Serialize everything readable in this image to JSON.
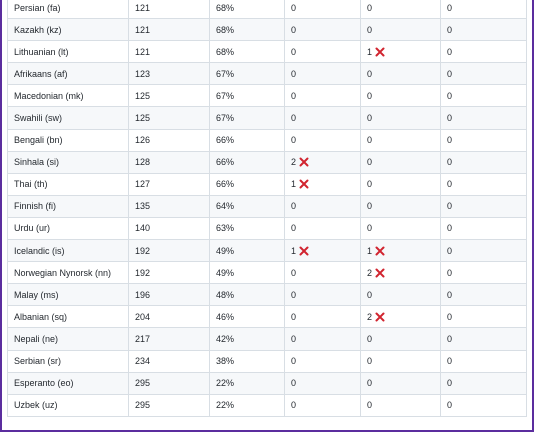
{
  "table": {
    "rows": [
      {
        "language": "Persian (fa)",
        "count": "121",
        "percent": "68%",
        "col4": "0",
        "col4_error": false,
        "col5": "0",
        "col5_error": false,
        "col6": "0"
      },
      {
        "language": "Kazakh (kz)",
        "count": "121",
        "percent": "68%",
        "col4": "0",
        "col4_error": false,
        "col5": "0",
        "col5_error": false,
        "col6": "0"
      },
      {
        "language": "Lithuanian (lt)",
        "count": "121",
        "percent": "68%",
        "col4": "0",
        "col4_error": false,
        "col5": "1",
        "col5_error": true,
        "col6": "0"
      },
      {
        "language": "Afrikaans (af)",
        "count": "123",
        "percent": "67%",
        "col4": "0",
        "col4_error": false,
        "col5": "0",
        "col5_error": false,
        "col6": "0"
      },
      {
        "language": "Macedonian (mk)",
        "count": "125",
        "percent": "67%",
        "col4": "0",
        "col4_error": false,
        "col5": "0",
        "col5_error": false,
        "col6": "0"
      },
      {
        "language": "Swahili (sw)",
        "count": "125",
        "percent": "67%",
        "col4": "0",
        "col4_error": false,
        "col5": "0",
        "col5_error": false,
        "col6": "0"
      },
      {
        "language": "Bengali (bn)",
        "count": "126",
        "percent": "66%",
        "col4": "0",
        "col4_error": false,
        "col5": "0",
        "col5_error": false,
        "col6": "0"
      },
      {
        "language": "Sinhala (si)",
        "count": "128",
        "percent": "66%",
        "col4": "2",
        "col4_error": true,
        "col5": "0",
        "col5_error": false,
        "col6": "0"
      },
      {
        "language": "Thai (th)",
        "count": "127",
        "percent": "66%",
        "col4": "1",
        "col4_error": true,
        "col5": "0",
        "col5_error": false,
        "col6": "0"
      },
      {
        "language": "Finnish (fi)",
        "count": "135",
        "percent": "64%",
        "col4": "0",
        "col4_error": false,
        "col5": "0",
        "col5_error": false,
        "col6": "0"
      },
      {
        "language": "Urdu (ur)",
        "count": "140",
        "percent": "63%",
        "col4": "0",
        "col4_error": false,
        "col5": "0",
        "col5_error": false,
        "col6": "0"
      },
      {
        "language": "Icelandic (is)",
        "count": "192",
        "percent": "49%",
        "col4": "1",
        "col4_error": true,
        "col5": "1",
        "col5_error": true,
        "col6": "0"
      },
      {
        "language": "Norwegian Nynorsk (nn)",
        "count": "192",
        "percent": "49%",
        "col4": "0",
        "col4_error": false,
        "col5": "2",
        "col5_error": true,
        "col6": "0"
      },
      {
        "language": "Malay (ms)",
        "count": "196",
        "percent": "48%",
        "col4": "0",
        "col4_error": false,
        "col5": "0",
        "col5_error": false,
        "col6": "0"
      },
      {
        "language": "Albanian (sq)",
        "count": "204",
        "percent": "46%",
        "col4": "0",
        "col4_error": false,
        "col5": "2",
        "col5_error": true,
        "col6": "0"
      },
      {
        "language": "Nepali (ne)",
        "count": "217",
        "percent": "42%",
        "col4": "0",
        "col4_error": false,
        "col5": "0",
        "col5_error": false,
        "col6": "0"
      },
      {
        "language": "Serbian (sr)",
        "count": "234",
        "percent": "38%",
        "col4": "0",
        "col4_error": false,
        "col5": "0",
        "col5_error": false,
        "col6": "0"
      },
      {
        "language": "Esperanto (eo)",
        "count": "295",
        "percent": "22%",
        "col4": "0",
        "col4_error": false,
        "col5": "0",
        "col5_error": false,
        "col6": "0"
      },
      {
        "language": "Uzbek (uz)",
        "count": "295",
        "percent": "22%",
        "col4": "0",
        "col4_error": false,
        "col5": "0",
        "col5_error": false,
        "col6": "0"
      }
    ]
  },
  "icons": {
    "error": "cross-mark-icon"
  },
  "colors": {
    "error_icon": "#d1242f",
    "frame_border": "#5b2d9e",
    "row_stripe": "#f6f8fa",
    "grid_line": "#d8dee4",
    "text": "#24292f"
  }
}
